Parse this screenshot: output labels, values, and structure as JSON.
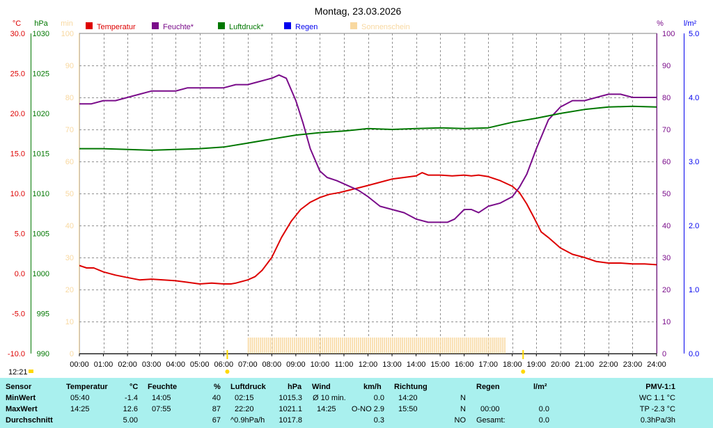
{
  "title": "Montag, 23.03.2026",
  "now_label": "12:21",
  "units": {
    "temp": "°C",
    "pressure": "hPa",
    "sun": "min",
    "humidity": "%",
    "rain": "l/m²"
  },
  "colors": {
    "temp": "#dd0000",
    "humidity": "#7a0c8a",
    "pressure": "#007700",
    "rain": "#0000ee",
    "sun": "#f8d8a0",
    "grid": "#909090",
    "table_bg": "#a9f0ee"
  },
  "chart_data": {
    "type": "line",
    "title": "Montag, 23.03.2026",
    "legend_position": "top",
    "grid": true,
    "x_ticks": [
      "00:00",
      "01:00",
      "02:00",
      "03:00",
      "04:00",
      "05:00",
      "06:00",
      "07:00",
      "08:00",
      "09:00",
      "10:00",
      "11:00",
      "12:00",
      "13:00",
      "14:00",
      "15:00",
      "16:00",
      "17:00",
      "18:00",
      "19:00",
      "20:00",
      "21:00",
      "22:00",
      "23:00",
      "24:00"
    ],
    "x_range_hours": [
      0,
      24
    ],
    "axes": {
      "temp": {
        "ticks": [
          "30.0",
          "25.0",
          "20.0",
          "15.0",
          "10.0",
          "5.0",
          "0.0",
          "-5.0",
          "-10.0"
        ],
        "range": [
          -10,
          30
        ]
      },
      "pressure": {
        "ticks": [
          "1030",
          "1025",
          "1020",
          "1015",
          "1010",
          "1005",
          "1000",
          "995",
          "990"
        ],
        "range": [
          990,
          1030
        ]
      },
      "sun": {
        "ticks": [
          "100",
          "90",
          "80",
          "70",
          "60",
          "50",
          "40",
          "30",
          "20",
          "10",
          "0"
        ],
        "range": [
          0,
          100
        ]
      },
      "humidity": {
        "ticks": [
          "100",
          "90",
          "80",
          "70",
          "60",
          "50",
          "40",
          "30",
          "20",
          "10",
          "0"
        ],
        "range": [
          0,
          100
        ]
      },
      "rain": {
        "ticks": [
          "5.0",
          "4.0",
          "3.0",
          "2.0",
          "1.0",
          "0.0"
        ],
        "range": [
          0,
          5
        ]
      }
    },
    "series": [
      {
        "name": "Temperatur",
        "axis": "temp",
        "color": "#dd0000",
        "x": [
          0,
          0.3,
          0.6,
          1,
          1.5,
          2,
          2.5,
          3,
          3.5,
          4,
          4.5,
          5,
          5.5,
          6,
          6.3,
          6.5,
          7,
          7.3,
          7.6,
          8,
          8.4,
          8.8,
          9.2,
          9.6,
          10,
          10.4,
          10.8,
          11.2,
          11.6,
          12,
          12.5,
          13,
          13.5,
          14,
          14.25,
          14.5,
          15,
          15.5,
          16,
          16.3,
          16.6,
          17,
          17.5,
          18,
          18.3,
          18.6,
          18.9,
          19.2,
          19.5,
          20,
          20.5,
          21,
          21.5,
          22,
          22.5,
          23,
          23.5,
          24
        ],
        "y": [
          1.0,
          0.7,
          0.7,
          0.2,
          -0.2,
          -0.5,
          -0.8,
          -0.7,
          -0.8,
          -0.9,
          -1.1,
          -1.3,
          -1.2,
          -1.3,
          -1.3,
          -1.2,
          -0.8,
          -0.4,
          0.4,
          2.0,
          4.5,
          6.5,
          8.0,
          8.9,
          9.5,
          9.9,
          10.1,
          10.4,
          10.7,
          11.0,
          11.4,
          11.8,
          12.0,
          12.2,
          12.6,
          12.3,
          12.3,
          12.2,
          12.3,
          12.2,
          12.3,
          12.1,
          11.6,
          10.9,
          10.1,
          8.7,
          7.0,
          5.2,
          4.5,
          3.2,
          2.4,
          2.0,
          1.5,
          1.3,
          1.3,
          1.2,
          1.2,
          1.1
        ]
      },
      {
        "name": "Feuchte*",
        "axis": "humidity",
        "color": "#7a0c8a",
        "x": [
          0,
          0.5,
          1,
          1.5,
          2,
          2.5,
          3,
          3.5,
          4,
          4.5,
          5,
          5.5,
          6,
          6.5,
          7,
          7.5,
          8,
          8.3,
          8.6,
          9,
          9.3,
          9.6,
          10,
          10.3,
          10.7,
          11,
          11.3,
          11.6,
          12,
          12.5,
          13,
          13.5,
          14,
          14.5,
          15,
          15.3,
          15.6,
          16,
          16.3,
          16.6,
          17,
          17.5,
          18,
          18.3,
          18.6,
          19,
          19.5,
          20,
          20.5,
          21,
          21.5,
          22,
          22.5,
          23,
          23.5,
          24
        ],
        "y": [
          78,
          78,
          79,
          79,
          80,
          81,
          82,
          82,
          82,
          83,
          83,
          83,
          83,
          84,
          84,
          85,
          86,
          87,
          86,
          79,
          72,
          64,
          57,
          55,
          54,
          53,
          52,
          51,
          49,
          46,
          45,
          44,
          42,
          41,
          41,
          41,
          42,
          45,
          45,
          44,
          46,
          47,
          49,
          52,
          56,
          64,
          73,
          77,
          79,
          79,
          80,
          81,
          81,
          80,
          80,
          80
        ]
      },
      {
        "name": "Luftdruck*",
        "axis": "pressure",
        "color": "#007700",
        "x": [
          0,
          1,
          2,
          3,
          4,
          5,
          6,
          7,
          8,
          9,
          10,
          11,
          12,
          13,
          14,
          15,
          16,
          17,
          18,
          19,
          20,
          21,
          22,
          23,
          24
        ],
        "y": [
          1015.6,
          1015.6,
          1015.5,
          1015.4,
          1015.5,
          1015.6,
          1015.8,
          1016.3,
          1016.8,
          1017.3,
          1017.6,
          1017.8,
          1018.1,
          1018.0,
          1018.1,
          1018.2,
          1018.1,
          1018.2,
          1018.9,
          1019.4,
          1020.0,
          1020.5,
          1020.8,
          1020.9,
          1020.8
        ]
      }
    ],
    "legend": [
      {
        "name": "Temperatur",
        "color": "#dd0000"
      },
      {
        "name": "Feuchte*",
        "color": "#7a0c8a"
      },
      {
        "name": "Luftdruck*",
        "color": "#007700"
      },
      {
        "name": "Regen",
        "color": "#0000ee"
      },
      {
        "name": "Sonnenschein",
        "color": "#f8d8a0"
      }
    ],
    "sunshine_hours": [
      7.0,
      17.7
    ],
    "sunrise_hour": 6.15,
    "sunset_hour": 18.45
  },
  "table": {
    "headers": {
      "sensor": "Sensor",
      "temp": "Temperatur",
      "temp_unit": "°C",
      "hum": "Feuchte",
      "hum_unit": "%",
      "press": "Luftdruck",
      "press_unit": "hPa",
      "wind": "Wind",
      "wind_unit": "km/h",
      "dir": "Richtung",
      "rain": "Regen",
      "rain_unit": "l/m²",
      "pmv": "PMV-1:1"
    },
    "min": {
      "label": "MinWert",
      "temp_time": "05:40",
      "temp": "-1.4",
      "hum_time": "14:05",
      "hum": "40",
      "press_time": "02:15",
      "press": "1015.3",
      "wind_time": "Ø 10 min.",
      "wind": "0.0",
      "dir_time": "14:20",
      "dir": "N",
      "pmv": "WC 1.1 °C"
    },
    "max": {
      "label": "MaxWert",
      "temp_time": "14:25",
      "temp": "12.6",
      "hum_time": "07:55",
      "hum": "87",
      "press_time": "22:20",
      "press": "1021.1",
      "wind_time": "14:25",
      "wind": "O-NO 2.9",
      "dir_time": "15:50",
      "dir": "N",
      "rain_time": "00:00",
      "rain": "0.0",
      "pmv": "TP -2.3 °C"
    },
    "avg": {
      "label": "Durchschnitt",
      "temp": "5.00",
      "hum": "67",
      "press_time": "^0.9hPa/h",
      "press": "1017.8",
      "wind": "0.3",
      "dir": "NO",
      "rain_time": "Gesamt:",
      "rain": "0.0",
      "pmv": "0.3hPa/3h"
    }
  }
}
